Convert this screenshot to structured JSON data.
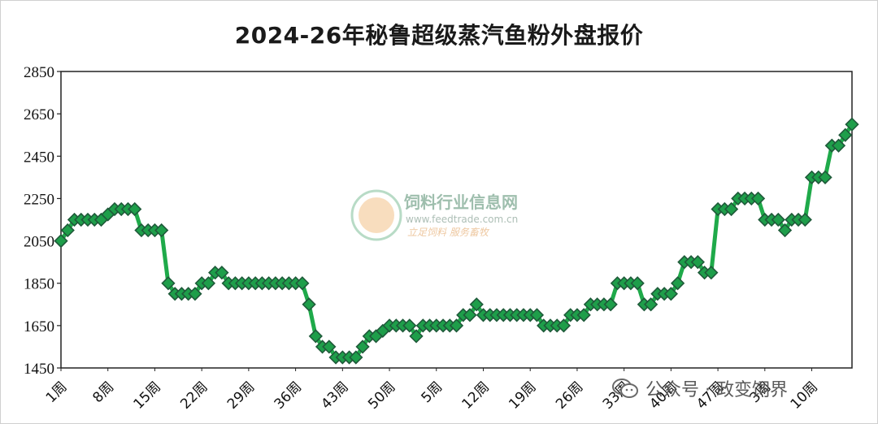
{
  "chart_data": {
    "type": "line",
    "title": "2024-26年秘鲁超级蒸汽鱼粉外盘报价",
    "xlabel": "",
    "ylabel": "",
    "ylim": [
      1450,
      2850
    ],
    "yticks": [
      1450,
      1650,
      1850,
      2050,
      2250,
      2450,
      2650,
      2850
    ],
    "grid": false,
    "legend": "none",
    "x_tick_labels": [
      "1周",
      "8周",
      "15周",
      "22周",
      "29周",
      "36周",
      "43周",
      "50周",
      "5周",
      "12周",
      "19周",
      "26周",
      "33周",
      "40周",
      "47周",
      "3周",
      "10周"
    ],
    "x_tick_every": 7,
    "series": [
      {
        "values": [
          2050,
          2100,
          2150,
          2150,
          2150,
          2150,
          2150,
          2175,
          2200,
          2200,
          2200,
          2200,
          2100,
          2100,
          2100,
          2100,
          1850,
          1800,
          1800,
          1800,
          1800,
          1850,
          1850,
          1900,
          1900,
          1850,
          1850,
          1850,
          1850,
          1850,
          1850,
          1850,
          1850,
          1850,
          1850,
          1850,
          1850,
          1750,
          1600,
          1550,
          1550,
          1500,
          1500,
          1500,
          1500,
          1550,
          1600,
          1600,
          1625,
          1650,
          1650,
          1650,
          1650,
          1600,
          1650,
          1650,
          1650,
          1650,
          1650,
          1650,
          1700,
          1700,
          1750,
          1700,
          1700,
          1700,
          1700,
          1700,
          1700,
          1700,
          1700,
          1700,
          1650,
          1650,
          1650,
          1650,
          1700,
          1700,
          1700,
          1750,
          1750,
          1750,
          1750,
          1850,
          1850,
          1850,
          1850,
          1750,
          1750,
          1800,
          1800,
          1800,
          1850,
          1950,
          1950,
          1950,
          1900,
          1900,
          2200,
          2200,
          2200,
          2250,
          2250,
          2250,
          2250,
          2150,
          2150,
          2150,
          2100,
          2150,
          2150,
          2150,
          2350,
          2350,
          2350,
          2500,
          2500,
          2550,
          2600
        ]
      }
    ],
    "line_color": "#1faa4a",
    "marker_color": "#1e9e4a",
    "marker_edge_color": "#1f5a3a"
  },
  "watermark": {
    "name": "饲料行业信息网",
    "url": "www.feedtrade.com.cn",
    "slogan": "立足饲料   服务畜牧"
  },
  "footer": {
    "brand": "公众号 · 政变饲界"
  }
}
